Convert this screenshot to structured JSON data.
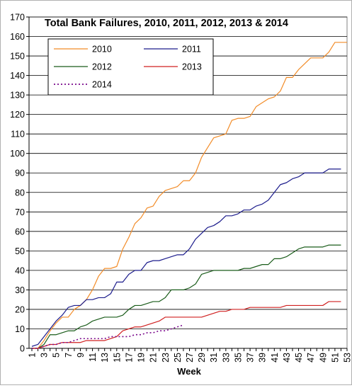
{
  "chart_data": {
    "type": "line",
    "title": "Total Bank Failures, 2010, 2011, 2012, 2013 & 2014",
    "xlabel": "Week",
    "ylabel": "",
    "ylim": [
      0,
      170
    ],
    "xlim": [
      1,
      53
    ],
    "x_ticks": [
      1,
      3,
      5,
      7,
      9,
      11,
      13,
      15,
      17,
      19,
      21,
      23,
      25,
      27,
      29,
      31,
      33,
      35,
      37,
      39,
      41,
      43,
      45,
      47,
      49,
      51,
      53
    ],
    "y_ticks": [
      0,
      10,
      20,
      30,
      40,
      50,
      60,
      70,
      80,
      90,
      100,
      110,
      120,
      130,
      140,
      150,
      160,
      170
    ],
    "grid": "horizontal",
    "legend_position": "top-left",
    "series": [
      {
        "name": "2010",
        "color": "#f28c28",
        "dash": "solid",
        "points": [
          [
            1,
            0
          ],
          [
            2,
            0
          ],
          [
            3,
            4
          ],
          [
            4,
            9
          ],
          [
            5,
            13
          ],
          [
            6,
            16
          ],
          [
            7,
            16
          ],
          [
            8,
            20
          ],
          [
            9,
            22
          ],
          [
            10,
            25
          ],
          [
            11,
            30
          ],
          [
            12,
            37
          ],
          [
            13,
            41
          ],
          [
            14,
            41
          ],
          [
            15,
            42
          ],
          [
            16,
            51
          ],
          [
            17,
            57
          ],
          [
            18,
            64
          ],
          [
            19,
            67
          ],
          [
            20,
            72
          ],
          [
            21,
            73
          ],
          [
            22,
            78
          ],
          [
            23,
            81
          ],
          [
            24,
            82
          ],
          [
            25,
            83
          ],
          [
            26,
            86
          ],
          [
            27,
            86
          ],
          [
            28,
            90
          ],
          [
            29,
            98
          ],
          [
            30,
            103
          ],
          [
            31,
            108
          ],
          [
            32,
            109
          ],
          [
            33,
            110
          ],
          [
            34,
            117
          ],
          [
            35,
            118
          ],
          [
            36,
            118
          ],
          [
            37,
            119
          ],
          [
            38,
            124
          ],
          [
            39,
            126
          ],
          [
            40,
            128
          ],
          [
            41,
            129
          ],
          [
            42,
            132
          ],
          [
            43,
            139
          ],
          [
            44,
            139
          ],
          [
            45,
            143
          ],
          [
            46,
            146
          ],
          [
            47,
            149
          ],
          [
            48,
            149
          ],
          [
            49,
            149
          ],
          [
            50,
            152
          ],
          [
            51,
            157
          ],
          [
            52,
            157
          ],
          [
            53,
            157
          ]
        ]
      },
      {
        "name": "2011",
        "color": "#1c1c8c",
        "dash": "solid",
        "points": [
          [
            1,
            1
          ],
          [
            2,
            2
          ],
          [
            3,
            6
          ],
          [
            4,
            10
          ],
          [
            5,
            14
          ],
          [
            6,
            17
          ],
          [
            7,
            21
          ],
          [
            8,
            22
          ],
          [
            9,
            22
          ],
          [
            10,
            25
          ],
          [
            11,
            25
          ],
          [
            12,
            26
          ],
          [
            13,
            26
          ],
          [
            14,
            28
          ],
          [
            15,
            34
          ],
          [
            16,
            34
          ],
          [
            17,
            38
          ],
          [
            18,
            40
          ],
          [
            19,
            40
          ],
          [
            20,
            44
          ],
          [
            21,
            45
          ],
          [
            22,
            45
          ],
          [
            23,
            46
          ],
          [
            24,
            47
          ],
          [
            25,
            48
          ],
          [
            26,
            48
          ],
          [
            27,
            51
          ],
          [
            28,
            56
          ],
          [
            29,
            59
          ],
          [
            30,
            62
          ],
          [
            31,
            63
          ],
          [
            32,
            65
          ],
          [
            33,
            68
          ],
          [
            34,
            68
          ],
          [
            35,
            69
          ],
          [
            36,
            71
          ],
          [
            37,
            71
          ],
          [
            38,
            73
          ],
          [
            39,
            74
          ],
          [
            40,
            76
          ],
          [
            41,
            80
          ],
          [
            42,
            84
          ],
          [
            43,
            85
          ],
          [
            44,
            87
          ],
          [
            45,
            88
          ],
          [
            46,
            90
          ],
          [
            47,
            90
          ],
          [
            48,
            90
          ],
          [
            49,
            90
          ],
          [
            50,
            92
          ],
          [
            51,
            92
          ],
          [
            52,
            92
          ]
        ]
      },
      {
        "name": "2012",
        "color": "#1a5c1a",
        "dash": "solid",
        "points": [
          [
            1,
            0
          ],
          [
            2,
            0
          ],
          [
            3,
            2
          ],
          [
            4,
            7
          ],
          [
            5,
            7
          ],
          [
            6,
            8
          ],
          [
            7,
            9
          ],
          [
            8,
            9
          ],
          [
            9,
            11
          ],
          [
            10,
            12
          ],
          [
            11,
            14
          ],
          [
            12,
            15
          ],
          [
            13,
            16
          ],
          [
            14,
            16
          ],
          [
            15,
            16
          ],
          [
            16,
            17
          ],
          [
            17,
            20
          ],
          [
            18,
            22
          ],
          [
            19,
            22
          ],
          [
            20,
            23
          ],
          [
            21,
            24
          ],
          [
            22,
            24
          ],
          [
            23,
            26
          ],
          [
            24,
            30
          ],
          [
            25,
            30
          ],
          [
            26,
            30
          ],
          [
            27,
            31
          ],
          [
            28,
            33
          ],
          [
            29,
            38
          ],
          [
            30,
            39
          ],
          [
            31,
            40
          ],
          [
            32,
            40
          ],
          [
            33,
            40
          ],
          [
            34,
            40
          ],
          [
            35,
            40
          ],
          [
            36,
            41
          ],
          [
            37,
            41
          ],
          [
            38,
            42
          ],
          [
            39,
            43
          ],
          [
            40,
            43
          ],
          [
            41,
            46
          ],
          [
            42,
            46
          ],
          [
            43,
            47
          ],
          [
            44,
            49
          ],
          [
            45,
            51
          ],
          [
            46,
            52
          ],
          [
            47,
            52
          ],
          [
            48,
            52
          ],
          [
            49,
            52
          ],
          [
            50,
            53
          ],
          [
            51,
            53
          ],
          [
            52,
            53
          ]
        ]
      },
      {
        "name": "2013",
        "color": "#d02020",
        "dash": "solid",
        "points": [
          [
            1,
            0
          ],
          [
            2,
            0
          ],
          [
            3,
            1
          ],
          [
            4,
            2
          ],
          [
            5,
            2
          ],
          [
            6,
            3
          ],
          [
            7,
            3
          ],
          [
            8,
            3
          ],
          [
            9,
            3
          ],
          [
            10,
            4
          ],
          [
            11,
            4
          ],
          [
            12,
            4
          ],
          [
            13,
            4
          ],
          [
            14,
            5
          ],
          [
            15,
            6
          ],
          [
            16,
            9
          ],
          [
            17,
            10
          ],
          [
            18,
            11
          ],
          [
            19,
            11
          ],
          [
            20,
            12
          ],
          [
            21,
            13
          ],
          [
            22,
            14
          ],
          [
            23,
            16
          ],
          [
            24,
            16
          ],
          [
            25,
            16
          ],
          [
            26,
            16
          ],
          [
            27,
            16
          ],
          [
            28,
            16
          ],
          [
            29,
            16
          ],
          [
            30,
            17
          ],
          [
            31,
            18
          ],
          [
            32,
            19
          ],
          [
            33,
            19
          ],
          [
            34,
            20
          ],
          [
            35,
            20
          ],
          [
            36,
            20
          ],
          [
            37,
            21
          ],
          [
            38,
            21
          ],
          [
            39,
            21
          ],
          [
            40,
            21
          ],
          [
            41,
            21
          ],
          [
            42,
            21
          ],
          [
            43,
            22
          ],
          [
            44,
            22
          ],
          [
            45,
            22
          ],
          [
            46,
            22
          ],
          [
            47,
            22
          ],
          [
            48,
            22
          ],
          [
            49,
            22
          ],
          [
            50,
            24
          ],
          [
            51,
            24
          ],
          [
            52,
            24
          ]
        ]
      },
      {
        "name": "2014",
        "color": "#7a0a8c",
        "dash": "dotted",
        "points": [
          [
            1,
            0
          ],
          [
            2,
            0
          ],
          [
            3,
            1
          ],
          [
            4,
            2
          ],
          [
            5,
            2
          ],
          [
            6,
            3
          ],
          [
            7,
            3
          ],
          [
            8,
            4
          ],
          [
            9,
            5
          ],
          [
            10,
            5
          ],
          [
            11,
            5
          ],
          [
            12,
            5
          ],
          [
            13,
            5
          ],
          [
            14,
            6
          ],
          [
            15,
            6
          ],
          [
            16,
            6
          ],
          [
            17,
            6
          ],
          [
            18,
            7
          ],
          [
            19,
            7
          ],
          [
            20,
            8
          ],
          [
            21,
            8
          ],
          [
            22,
            9
          ],
          [
            23,
            9
          ],
          [
            24,
            10
          ],
          [
            25,
            11
          ],
          [
            26,
            12
          ]
        ]
      }
    ]
  }
}
